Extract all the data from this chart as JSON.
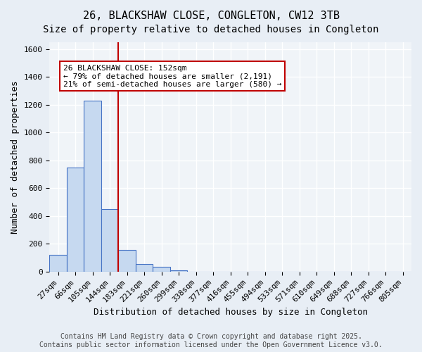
{
  "title": "26, BLACKSHAW CLOSE, CONGLETON, CW12 3TB",
  "subtitle": "Size of property relative to detached houses in Congleton",
  "xlabel": "Distribution of detached houses by size in Congleton",
  "ylabel": "Number of detached properties",
  "bin_labels": [
    "27sqm",
    "66sqm",
    "105sqm",
    "144sqm",
    "183sqm",
    "221sqm",
    "260sqm",
    "299sqm",
    "338sqm",
    "377sqm",
    "416sqm",
    "455sqm",
    "494sqm",
    "533sqm",
    "571sqm",
    "610sqm",
    "649sqm",
    "688sqm",
    "727sqm",
    "766sqm",
    "805sqm"
  ],
  "bar_values": [
    120,
    750,
    1230,
    450,
    155,
    55,
    33,
    12,
    0,
    0,
    0,
    0,
    0,
    0,
    0,
    0,
    0,
    0,
    0,
    0,
    0
  ],
  "bar_color": "#c6d9f0",
  "bar_edge_color": "#4472c4",
  "vline_x_index": 3.5,
  "vline_color": "#c00000",
  "annotation_text": "26 BLACKSHAW CLOSE: 152sqm\n← 79% of detached houses are smaller (2,191)\n21% of semi-detached houses are larger (580) →",
  "annotation_box_color": "white",
  "annotation_box_edge": "#c00000",
  "ylim": [
    0,
    1650
  ],
  "yticks": [
    0,
    200,
    400,
    600,
    800,
    1000,
    1200,
    1400,
    1600
  ],
  "background_color": "#e8eef5",
  "plot_bg_color": "#f0f4f8",
  "grid_color": "white",
  "footer_text": "Contains HM Land Registry data © Crown copyright and database right 2025.\nContains public sector information licensed under the Open Government Licence v3.0.",
  "title_fontsize": 11,
  "subtitle_fontsize": 10,
  "axis_label_fontsize": 9,
  "tick_fontsize": 8,
  "annotation_fontsize": 8,
  "footer_fontsize": 7
}
